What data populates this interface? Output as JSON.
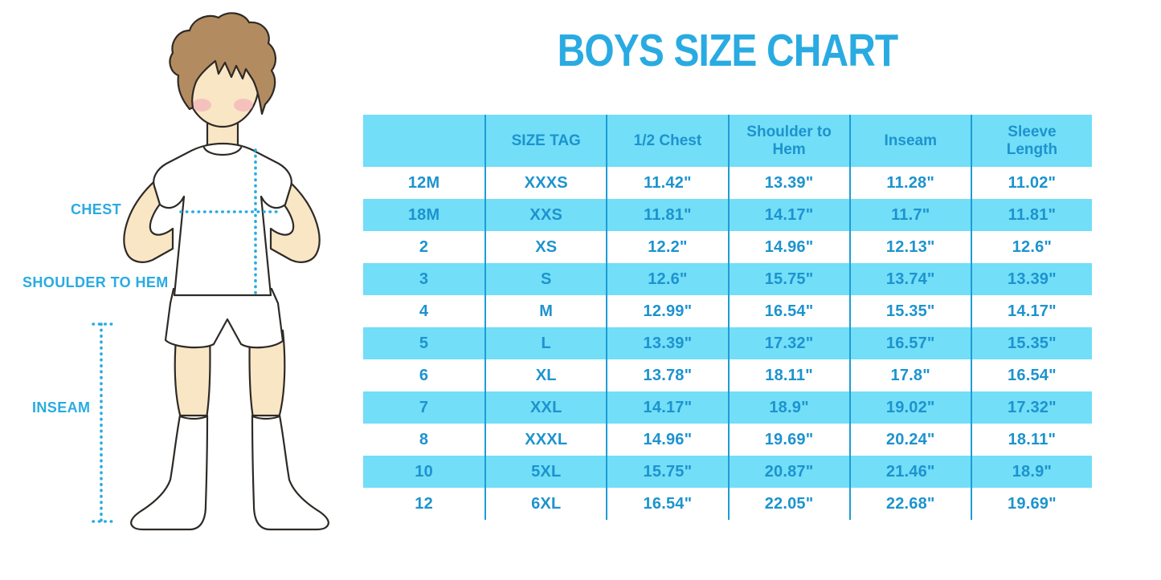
{
  "title": "BOYS SIZE CHART",
  "colors": {
    "accent": "#29ABE2",
    "row_fill": "#72DEF8",
    "table_text": "#1D93CE",
    "divider": "#1E9CD6",
    "hair": "#B28C60",
    "skin": "#F9E6C5",
    "blush": "#F2A9B8",
    "outline": "#2E2A26"
  },
  "figure": {
    "chest_label": "CHEST",
    "shoulder_to_hem_label": "SHOULDER TO HEM",
    "inseam_label": "INSEAM"
  },
  "chart_data": {
    "type": "table",
    "title": "BOYS SIZE CHART",
    "columns": [
      "",
      "SIZE TAG",
      "1/2 Chest",
      "Shoulder to Hem",
      "Inseam",
      "Sleeve Length"
    ],
    "rows": [
      [
        "12M",
        "XXXS",
        "11.42\"",
        "13.39\"",
        "11.28\"",
        "11.02\""
      ],
      [
        "18M",
        "XXS",
        "11.81\"",
        "14.17\"",
        "11.7\"",
        "11.81\""
      ],
      [
        "2",
        "XS",
        "12.2\"",
        "14.96\"",
        "12.13\"",
        "12.6\""
      ],
      [
        "3",
        "S",
        "12.6\"",
        "15.75\"",
        "13.74\"",
        "13.39\""
      ],
      [
        "4",
        "M",
        "12.99\"",
        "16.54\"",
        "15.35\"",
        "14.17\""
      ],
      [
        "5",
        "L",
        "13.39\"",
        "17.32\"",
        "16.57\"",
        "15.35\""
      ],
      [
        "6",
        "XL",
        "13.78\"",
        "18.11\"",
        "17.8\"",
        "16.54\""
      ],
      [
        "7",
        "XXL",
        "14.17\"",
        "18.9\"",
        "19.02\"",
        "17.32\""
      ],
      [
        "8",
        "XXXL",
        "14.96\"",
        "19.69\"",
        "20.24\"",
        "18.11\""
      ],
      [
        "10",
        "5XL",
        "15.75\"",
        "20.87\"",
        "21.46\"",
        "18.9\""
      ],
      [
        "12",
        "6XL",
        "16.54\"",
        "22.05\"",
        "22.68\"",
        "19.69\""
      ]
    ],
    "header_fill": "#72DEF8",
    "stripe_colors": [
      "#FFFFFF",
      "#72DEF8"
    ],
    "grid": "vertical-dividers-only"
  }
}
